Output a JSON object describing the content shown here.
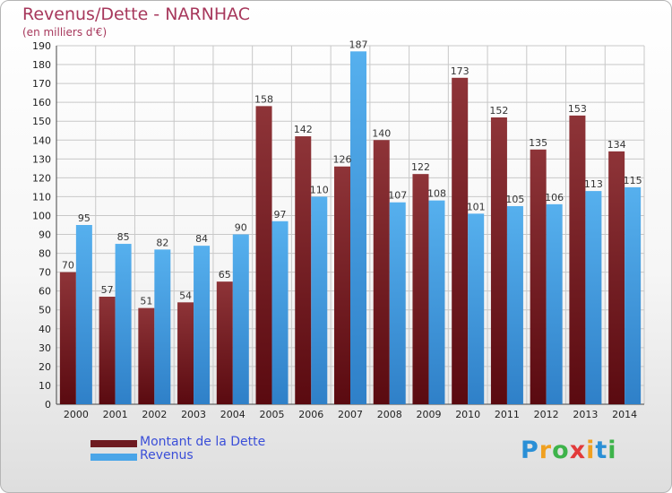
{
  "chart_data": {
    "type": "bar",
    "title": "Revenus/Dette - NARNHAC",
    "subtitle": "(en milliers d'€)",
    "categories": [
      "2000",
      "2001",
      "2002",
      "2003",
      "2004",
      "2005",
      "2006",
      "2007",
      "2008",
      "2009",
      "2010",
      "2011",
      "2012",
      "2013",
      "2014"
    ],
    "series": [
      {
        "name": "Montant de la Dette",
        "color": "#8a2b31",
        "values": [
          70,
          57,
          51,
          54,
          65,
          158,
          142,
          126,
          140,
          122,
          173,
          152,
          135,
          153,
          134
        ]
      },
      {
        "name": "Revenus",
        "color": "#4aa5e8",
        "values": [
          95,
          85,
          82,
          84,
          90,
          97,
          110,
          187,
          107,
          108,
          101,
          105,
          106,
          113,
          115
        ]
      }
    ],
    "ylim": [
      0,
      190
    ],
    "ytick_step": 10,
    "xlabel": "",
    "ylabel": "",
    "grid": true,
    "legend_position": "bottom-left"
  },
  "logo": {
    "letters": [
      "P",
      "r",
      "o",
      "x",
      "i",
      "t",
      "i"
    ],
    "colors": [
      "#2a8fd6",
      "#f0a020",
      "#3db34a",
      "#e23a3a",
      "#f0a020",
      "#2a8fd6",
      "#3db34a"
    ]
  }
}
